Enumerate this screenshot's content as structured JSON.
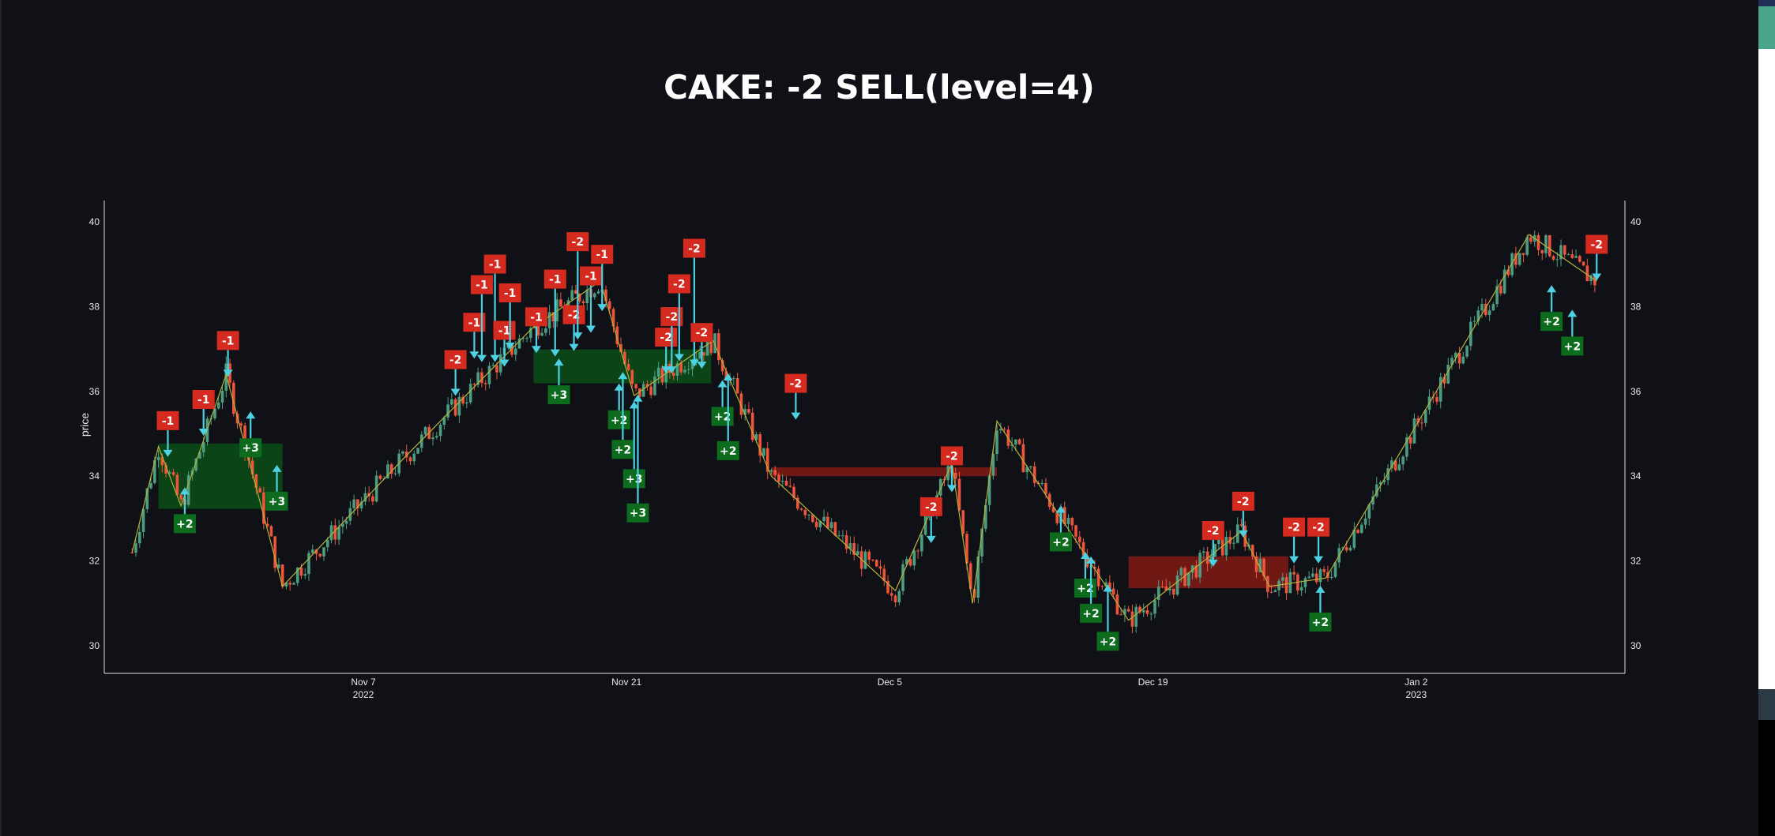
{
  "chart_data": {
    "type": "candlestick",
    "title": "CAKE: -2 SELL(level=4)",
    "ylabel": "price",
    "xlabel": "",
    "ylim": [
      29.35,
      40.5
    ],
    "yticks": [
      "30",
      "32",
      "34",
      "36",
      "38",
      "40"
    ],
    "x_reference_date": "2022-11-07",
    "x_unit": "days from reference",
    "xticks": [
      {
        "day": 0,
        "label": "Nov 7",
        "year": "2022"
      },
      {
        "day": 14,
        "label": "Nov 21",
        "year": ""
      },
      {
        "day": 28,
        "label": "Dec 5",
        "year": ""
      },
      {
        "day": 42,
        "label": "Dec 19",
        "year": ""
      },
      {
        "day": 56,
        "label": "Jan 2",
        "year": "2023"
      }
    ],
    "colors": {
      "up": "#4c9e80",
      "down": "#ef553b",
      "arrow": "#4dd0e1",
      "zigzag": "#b5b33a",
      "sell": "#d42a1f",
      "buy": "#0c6b1c",
      "zone_buy": "#0b4a16",
      "zone_sell": "#7a1a14"
    },
    "zigzag": [
      [
        -12.3,
        32.2
      ],
      [
        -10.9,
        34.7
      ],
      [
        -9.7,
        33.3
      ],
      [
        -7.3,
        36.4
      ],
      [
        -4.3,
        31.4
      ],
      [
        2.1,
        34.4
      ],
      [
        9.0,
        37.5
      ],
      [
        12.6,
        38.6
      ],
      [
        14.4,
        35.9
      ],
      [
        18.6,
        37.2
      ],
      [
        21.7,
        34.0
      ],
      [
        28.3,
        31.3
      ],
      [
        31.3,
        34.3
      ],
      [
        32.4,
        31.0
      ],
      [
        33.7,
        35.3
      ],
      [
        40.7,
        30.6
      ],
      [
        46.7,
        32.7
      ],
      [
        48.2,
        31.4
      ],
      [
        51.2,
        31.6
      ],
      [
        62.0,
        39.7
      ],
      [
        65.6,
        38.6
      ]
    ],
    "zones": [
      {
        "kind": "buy",
        "x0": -10.9,
        "x1": -4.3,
        "y0": 33.23,
        "y1": 34.77
      },
      {
        "kind": "buy",
        "x0": 9.05,
        "x1": 18.5,
        "y0": 36.19,
        "y1": 36.99
      },
      {
        "kind": "sell",
        "x0": 21.7,
        "x1": 33.7,
        "y0": 34.0,
        "y1": 34.21
      },
      {
        "kind": "sell",
        "x0": 40.7,
        "x1": 49.2,
        "y0": 31.36,
        "y1": 32.11
      }
    ],
    "signals": [
      {
        "label": "-1",
        "day": -10.4,
        "price": 35.31
      },
      {
        "label": "-1",
        "day": -8.5,
        "price": 35.81
      },
      {
        "label": "-1",
        "day": -7.2,
        "price": 37.2
      },
      {
        "label": "+3",
        "day": -6.0,
        "price": 34.67
      },
      {
        "label": "+3",
        "day": -4.6,
        "price": 33.41
      },
      {
        "label": "+2",
        "day": -9.5,
        "price": 32.88
      },
      {
        "label": "-2",
        "day": 4.9,
        "price": 36.75
      },
      {
        "label": "-1",
        "day": 5.9,
        "price": 37.63
      },
      {
        "label": "-1",
        "day": 6.3,
        "price": 37.55
      },
      {
        "label": "-1",
        "day": 7.0,
        "price": 37.55
      },
      {
        "label": "-1",
        "day": 7.5,
        "price": 37.44
      },
      {
        "label": "-1",
        "day": 7.8,
        "price": 37.84
      },
      {
        "label": "-1",
        "day": 9.2,
        "price": 37.76
      },
      {
        "label": "-1",
        "day": 10.2,
        "price": 37.68
      },
      {
        "label": "-2",
        "day": 11.2,
        "price": 37.81
      },
      {
        "label": "-2",
        "day": 11.4,
        "price": 38.08
      },
      {
        "label": "-1",
        "day": 12.1,
        "price": 38.24
      },
      {
        "label": "-1",
        "day": 12.7,
        "price": 38.75
      },
      {
        "label": "+3",
        "day": 10.4,
        "price": 35.92
      },
      {
        "label": "-2",
        "day": 16.1,
        "price": 37.28
      },
      {
        "label": "-2",
        "day": 16.4,
        "price": 37.28
      },
      {
        "label": "-2",
        "day": 16.8,
        "price": 37.57
      },
      {
        "label": "-2",
        "day": 17.6,
        "price": 37.44
      },
      {
        "label": "-2",
        "day": 18.0,
        "price": 37.39
      },
      {
        "label": "+2",
        "day": 13.6,
        "price": 35.33
      },
      {
        "label": "+2",
        "day": 13.8,
        "price": 35.6
      },
      {
        "label": "+3",
        "day": 14.4,
        "price": 34.91
      },
      {
        "label": "+3",
        "day": 14.6,
        "price": 35.07
      },
      {
        "label": "+2",
        "day": 19.1,
        "price": 35.41
      },
      {
        "label": "+2",
        "day": 19.4,
        "price": 35.57
      },
      {
        "label": "-2",
        "day": 23.0,
        "price": 36.19
      },
      {
        "label": "-2",
        "day": 31.3,
        "price": 34.48
      },
      {
        "label": "-2",
        "day": 30.2,
        "price": 33.28
      },
      {
        "label": "+2",
        "day": 37.1,
        "price": 32.45
      },
      {
        "label": "+2",
        "day": 38.4,
        "price": 31.36
      },
      {
        "label": "+2",
        "day": 38.7,
        "price": 31.25
      },
      {
        "label": "+2",
        "day": 39.6,
        "price": 30.59
      },
      {
        "label": "-2",
        "day": 45.2,
        "price": 32.72
      },
      {
        "label": "-2",
        "day": 46.8,
        "price": 33.41
      },
      {
        "label": "-2",
        "day": 49.5,
        "price": 32.8
      },
      {
        "label": "-2",
        "day": 50.8,
        "price": 32.8
      },
      {
        "label": "+2",
        "day": 50.9,
        "price": 30.56
      },
      {
        "label": "+2",
        "day": 63.2,
        "price": 37.65
      },
      {
        "label": "+2",
        "day": 64.3,
        "price": 37.07
      },
      {
        "label": "-2",
        "day": 65.6,
        "price": 39.47
      }
    ]
  }
}
